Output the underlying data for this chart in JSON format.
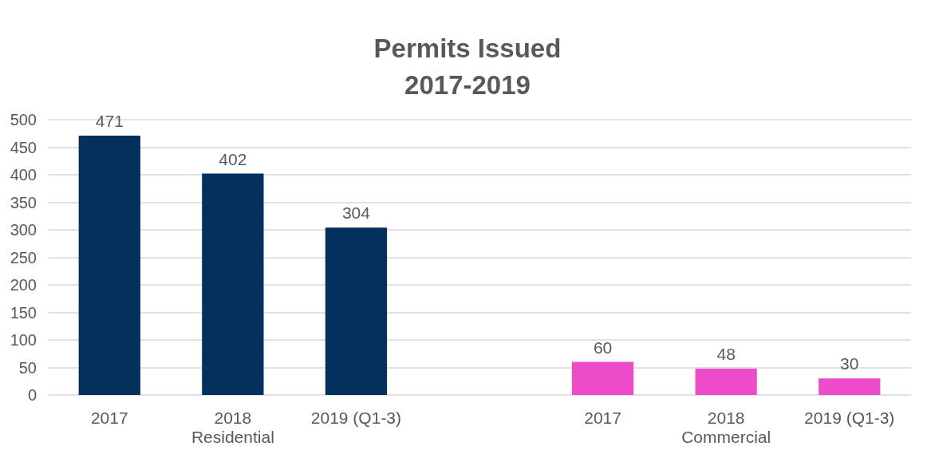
{
  "chart_data": {
    "type": "bar",
    "title": "Permits Issued\n2017-2019",
    "categories": [
      "2017",
      "2018",
      "2019 (Q1-3)",
      null,
      "2017",
      "2018",
      "2019 (Q1-3)"
    ],
    "values": [
      471,
      402,
      304,
      null,
      60,
      48,
      30
    ],
    "colors": [
      "#04305e",
      "#04305e",
      "#04305e",
      null,
      "#ee4bcb",
      "#ee4bcb",
      "#ee4bcb"
    ],
    "annotations": [
      "Residential",
      "Commercial"
    ],
    "ylim": [
      0,
      500
    ],
    "yticks": [
      0,
      50,
      100,
      150,
      200,
      250,
      300,
      350,
      400,
      450,
      500
    ],
    "grid": "y",
    "data_labels": true
  }
}
